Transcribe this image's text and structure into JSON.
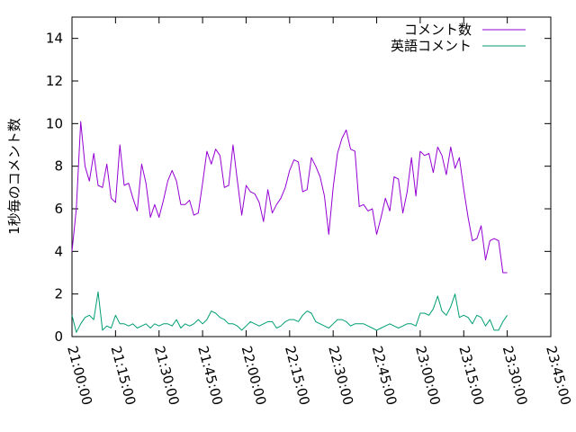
{
  "chart_data": {
    "type": "line",
    "title": "",
    "xlabel": "",
    "ylabel": "1秒毎のコメント数",
    "xlim": [
      "21:00:00",
      "23:45:00"
    ],
    "ylim": [
      0,
      15
    ],
    "yticks": [
      0,
      2,
      4,
      6,
      8,
      10,
      12,
      14
    ],
    "xticks": [
      "21:00:00",
      "21:15:00",
      "21:30:00",
      "21:45:00",
      "22:00:00",
      "22:15:00",
      "22:30:00",
      "22:45:00",
      "23:00:00",
      "23:15:00",
      "23:30:00",
      "23:45:00"
    ],
    "grid": false,
    "legend_position": "top-right",
    "x": [
      "21:00:00",
      "21:01:30",
      "21:03:00",
      "21:04:30",
      "21:06:00",
      "21:07:30",
      "21:09:00",
      "21:10:30",
      "21:12:00",
      "21:13:30",
      "21:15:00",
      "21:16:30",
      "21:18:00",
      "21:19:30",
      "21:21:00",
      "21:22:30",
      "21:24:00",
      "21:25:30",
      "21:27:00",
      "21:28:30",
      "21:30:00",
      "21:31:30",
      "21:33:00",
      "21:34:30",
      "21:36:00",
      "21:37:30",
      "21:39:00",
      "21:40:30",
      "21:42:00",
      "21:43:30",
      "21:45:00",
      "21:46:30",
      "21:48:00",
      "21:49:30",
      "21:51:00",
      "21:52:30",
      "21:54:00",
      "21:55:30",
      "21:57:00",
      "21:58:30",
      "22:00:00",
      "22:01:30",
      "22:03:00",
      "22:04:30",
      "22:06:00",
      "22:07:30",
      "22:09:00",
      "22:10:30",
      "22:12:00",
      "22:13:30",
      "22:15:00",
      "22:16:30",
      "22:18:00",
      "22:19:30",
      "22:21:00",
      "22:22:30",
      "22:24:00",
      "22:25:30",
      "22:27:00",
      "22:28:30",
      "22:30:00",
      "22:31:30",
      "22:33:00",
      "22:34:30",
      "22:36:00",
      "22:37:30",
      "22:39:00",
      "22:40:30",
      "22:42:00",
      "22:43:30",
      "22:45:00",
      "22:46:30",
      "22:48:00",
      "22:49:30",
      "22:51:00",
      "22:52:30",
      "22:54:00",
      "22:55:30",
      "22:57:00",
      "22:58:30",
      "23:00:00",
      "23:01:30",
      "23:03:00",
      "23:04:30",
      "23:06:00",
      "23:07:30",
      "23:09:00",
      "23:10:30",
      "23:12:00",
      "23:13:30",
      "23:15:00",
      "23:16:30",
      "23:18:00",
      "23:19:30",
      "23:21:00",
      "23:22:30",
      "23:24:00",
      "23:25:30",
      "23:27:00",
      "23:28:30",
      "23:30:00"
    ],
    "series": [
      {
        "name": "コメント数",
        "color": "#9400d3",
        "values": [
          4.0,
          6.0,
          10.1,
          8.0,
          7.3,
          8.6,
          7.1,
          7.0,
          8.1,
          6.5,
          6.3,
          9.0,
          7.1,
          7.2,
          6.5,
          5.9,
          8.1,
          7.2,
          5.6,
          6.2,
          5.6,
          6.4,
          7.3,
          7.8,
          7.3,
          6.2,
          6.2,
          6.4,
          5.7,
          5.8,
          7.2,
          8.7,
          8.1,
          8.8,
          8.5,
          7.0,
          7.1,
          9.0,
          7.3,
          5.7,
          7.1,
          6.8,
          6.7,
          6.3,
          5.4,
          6.9,
          5.8,
          6.2,
          6.5,
          7.0,
          7.8,
          8.3,
          8.2,
          6.8,
          6.9,
          8.4,
          8.0,
          7.5,
          6.6,
          4.8,
          7.0,
          8.6,
          9.3,
          9.7,
          8.8,
          8.7,
          6.1,
          6.2,
          5.9,
          6.0,
          4.8,
          5.6,
          6.5,
          5.9,
          7.5,
          7.4,
          5.8,
          6.8,
          8.4,
          6.6,
          8.7,
          8.5,
          8.6,
          7.7,
          8.9,
          8.5,
          7.6,
          8.9,
          7.9,
          8.4,
          6.9,
          5.6,
          4.5,
          4.6,
          5.2,
          3.6,
          4.5,
          4.6,
          4.5,
          3.0,
          3.0
        ]
      },
      {
        "name": "英語コメント",
        "color": "#009e73",
        "values": [
          1.0,
          0.2,
          0.6,
          0.9,
          1.0,
          0.8,
          2.1,
          0.3,
          0.5,
          0.4,
          1.0,
          0.6,
          0.6,
          0.5,
          0.6,
          0.4,
          0.5,
          0.6,
          0.4,
          0.6,
          0.5,
          0.6,
          0.6,
          0.5,
          0.8,
          0.4,
          0.6,
          0.5,
          0.6,
          0.8,
          0.6,
          0.8,
          1.2,
          1.1,
          0.9,
          0.8,
          0.6,
          0.6,
          0.5,
          0.3,
          0.5,
          0.7,
          0.6,
          0.5,
          0.6,
          0.7,
          0.7,
          0.4,
          0.5,
          0.7,
          0.8,
          0.8,
          0.7,
          1.0,
          1.2,
          1.1,
          0.7,
          0.6,
          0.5,
          0.4,
          0.6,
          0.8,
          0.8,
          0.7,
          0.5,
          0.6,
          0.6,
          0.6,
          0.5,
          0.4,
          0.3,
          0.4,
          0.5,
          0.6,
          0.5,
          0.4,
          0.5,
          0.6,
          0.6,
          0.5,
          1.1,
          1.1,
          1.0,
          1.3,
          1.9,
          1.2,
          1.0,
          1.4,
          2.0,
          0.9,
          1.0,
          0.9,
          0.6,
          1.0,
          0.9,
          0.5,
          0.8,
          0.3,
          0.3,
          0.7,
          1.0
        ]
      }
    ]
  }
}
